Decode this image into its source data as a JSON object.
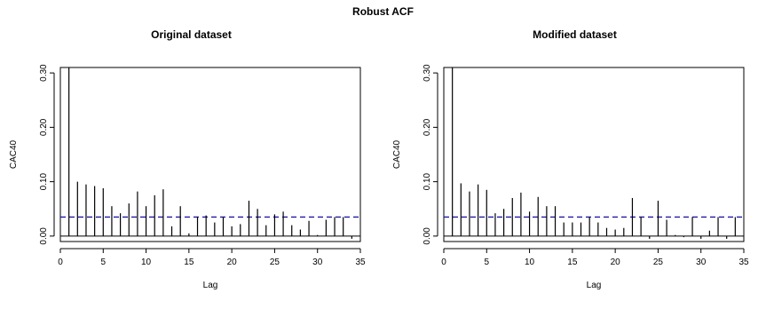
{
  "title": "Robust ACF",
  "chart_data": [
    {
      "type": "bar",
      "title": "Original dataset",
      "xlabel": "Lag",
      "ylabel": "CAC40",
      "xlim": [
        0,
        35
      ],
      "ylim": [
        -0.01,
        0.31
      ],
      "xticks": [
        "0",
        "5",
        "10",
        "15",
        "20",
        "25",
        "30",
        "35"
      ],
      "yticks": [
        "0.00",
        "0.10",
        "0.20",
        "0.30"
      ],
      "confidence_bound": 0.035,
      "lags": [
        1,
        2,
        3,
        4,
        5,
        6,
        7,
        8,
        9,
        10,
        11,
        12,
        13,
        14,
        15,
        16,
        17,
        18,
        19,
        20,
        21,
        22,
        23,
        24,
        25,
        26,
        27,
        28,
        29,
        30,
        31,
        32,
        33,
        34
      ],
      "values": [
        0.31,
        0.1,
        0.095,
        0.092,
        0.088,
        0.055,
        0.042,
        0.06,
        0.082,
        0.055,
        0.075,
        0.086,
        0.018,
        0.055,
        0.005,
        0.035,
        0.038,
        0.025,
        0.035,
        0.018,
        0.022,
        0.065,
        0.05,
        0.02,
        0.04,
        0.045,
        0.02,
        0.012,
        0.028,
        0.002,
        0.03,
        0.035,
        0.035,
        -0.005
      ]
    },
    {
      "type": "bar",
      "title": "Modified dataset",
      "xlabel": "Lag",
      "ylabel": "CAC40",
      "xlim": [
        0,
        35
      ],
      "ylim": [
        -0.01,
        0.31
      ],
      "xticks": [
        "0",
        "5",
        "10",
        "15",
        "20",
        "25",
        "30",
        "35"
      ],
      "yticks": [
        "0.00",
        "0.10",
        "0.20",
        "0.30"
      ],
      "confidence_bound": 0.035,
      "lags": [
        1,
        2,
        3,
        4,
        5,
        6,
        7,
        8,
        9,
        10,
        11,
        12,
        13,
        14,
        15,
        16,
        17,
        18,
        19,
        20,
        21,
        22,
        23,
        24,
        25,
        26,
        27,
        28,
        29,
        30,
        31,
        32,
        33,
        34
      ],
      "values": [
        0.31,
        0.097,
        0.082,
        0.095,
        0.085,
        0.042,
        0.05,
        0.07,
        0.08,
        0.045,
        0.072,
        0.055,
        0.055,
        0.025,
        0.025,
        0.025,
        0.035,
        0.025,
        0.015,
        0.012,
        0.015,
        0.07,
        0.035,
        -0.005,
        0.065,
        0.03,
        0.002,
        -0.002,
        0.035,
        -0.005,
        0.01,
        0.035,
        -0.005,
        0.035
      ]
    }
  ]
}
